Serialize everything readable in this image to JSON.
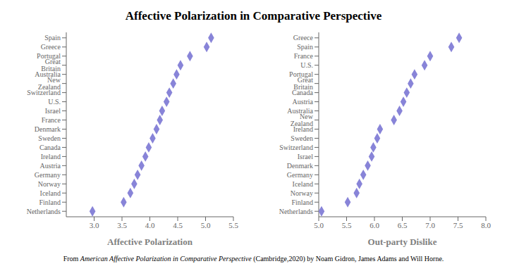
{
  "title": "Affective Polarization in Comparative Perspective",
  "annotations": [
    "From ",
    "American Affective Polarization in Comparative Perspective",
    " (Cambridge,2020) by Noam Gidron, James Adams and Will Horne."
  ],
  "chart_data": [
    {
      "type": "scatter",
      "xlabel": "Affective Polarization",
      "xlim": [
        2.5,
        5.5
      ],
      "xticks": [
        {
          "value": 3.0,
          "label": "3.0"
        },
        3.5,
        {
          "value": 4.0,
          "label": "4.0"
        },
        4.5,
        {
          "value": 5.0,
          "label": "5.0"
        },
        5.5
      ],
      "marker": "diamond",
      "categories": [
        "Spain",
        "Greece",
        "Portugal",
        "Great Britain",
        "Australia",
        "New Zealand",
        "Switzerland",
        "U.S.",
        "Israel",
        "France",
        "Denmark",
        "Sweden",
        "Canada",
        "Ireland",
        "Austria",
        "Germany",
        "Norway",
        "Iceland",
        "Finland",
        "Netherlands"
      ],
      "values": [
        5.1,
        5.02,
        4.72,
        4.55,
        4.48,
        4.42,
        4.35,
        4.3,
        4.22,
        4.18,
        4.12,
        4.05,
        3.98,
        3.92,
        3.85,
        3.78,
        3.72,
        3.65,
        3.53,
        2.97
      ]
    },
    {
      "type": "scatter",
      "xlabel": "Out-party Dislike",
      "xlim": [
        5.0,
        8.0
      ],
      "xticks": [
        {
          "value": 5.0,
          "label": "5.0"
        },
        5.5,
        {
          "value": 6.0,
          "label": "6.0"
        },
        6.5,
        {
          "value": 7.0,
          "label": "7.0"
        },
        7.5,
        {
          "value": 8.0,
          "label": "8.0"
        }
      ],
      "marker": "diamond",
      "categories": [
        "Greece",
        "Spain",
        "France",
        "U.S.",
        "Portugal",
        "Great Britain",
        "Canada",
        "Austria",
        "Australia",
        "New Zealand",
        "Ireland",
        "Sweden",
        "Switzerland",
        "Israel",
        "Denmark",
        "Germany",
        "Iceland",
        "Norway",
        "Finland",
        "Netherlands"
      ],
      "values": [
        7.52,
        7.38,
        7.0,
        6.9,
        6.72,
        6.65,
        6.58,
        6.52,
        6.45,
        6.35,
        6.1,
        6.05,
        5.98,
        5.95,
        5.88,
        5.8,
        5.73,
        5.68,
        5.52,
        5.05
      ]
    }
  ]
}
